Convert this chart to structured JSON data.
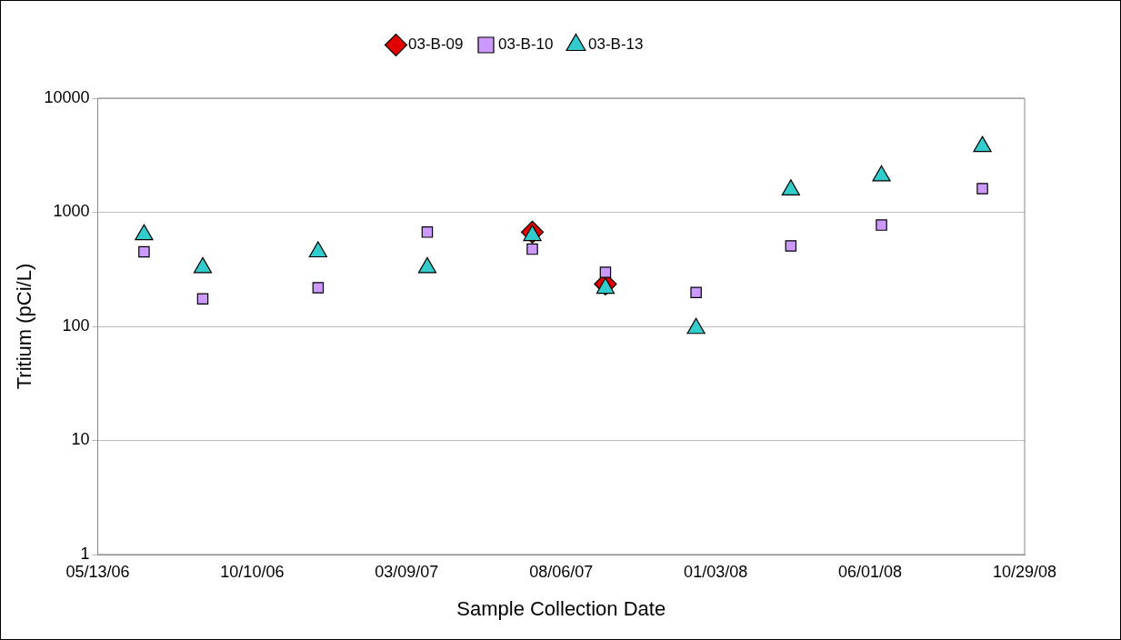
{
  "chart_data": {
    "type": "scatter",
    "xlabel": "Sample Collection Date",
    "ylabel": "Tritium (pCi/L)",
    "x": [
      "2006-06-27",
      "2006-08-23",
      "2006-12-13",
      "2007-03-29",
      "2007-07-09",
      "2007-09-18",
      "2007-12-15",
      "2008-03-16",
      "2008-06-12",
      "2008-09-18"
    ],
    "series": [
      {
        "name": "03-B-09",
        "color": "#e00000",
        "marker": "diamond",
        "values": [
          null,
          null,
          null,
          null,
          670,
          235,
          null,
          null,
          null,
          null
        ]
      },
      {
        "name": "03-B-10",
        "color": "#cc99ff",
        "marker": "square",
        "values": [
          450,
          174,
          218,
          670,
          475,
          298,
          198,
          507,
          772,
          1610
        ]
      },
      {
        "name": "03-B-13",
        "color": "#33cccc",
        "marker": "triangle",
        "values": [
          637,
          327,
          450,
          327,
          626,
          216,
          96,
          1570,
          2085,
          3776
        ]
      }
    ],
    "xlim": [
      "2006-05-13",
      "2008-10-29"
    ],
    "xticks": [
      {
        "value": "2006-05-13",
        "label": "05/13/06"
      },
      {
        "value": "2006-10-10",
        "label": "10/10/06"
      },
      {
        "value": "2007-03-09",
        "label": "03/09/07"
      },
      {
        "value": "2007-08-06",
        "label": "08/06/07"
      },
      {
        "value": "2008-01-03",
        "label": "01/03/08"
      },
      {
        "value": "2008-06-01",
        "label": "06/01/08"
      },
      {
        "value": "2008-10-29",
        "label": "10/29/08"
      }
    ],
    "ylim": [
      1,
      10000
    ],
    "yticks": [
      1,
      10,
      100,
      1000,
      10000
    ],
    "log": "y",
    "grid": "y",
    "legend": "top"
  }
}
